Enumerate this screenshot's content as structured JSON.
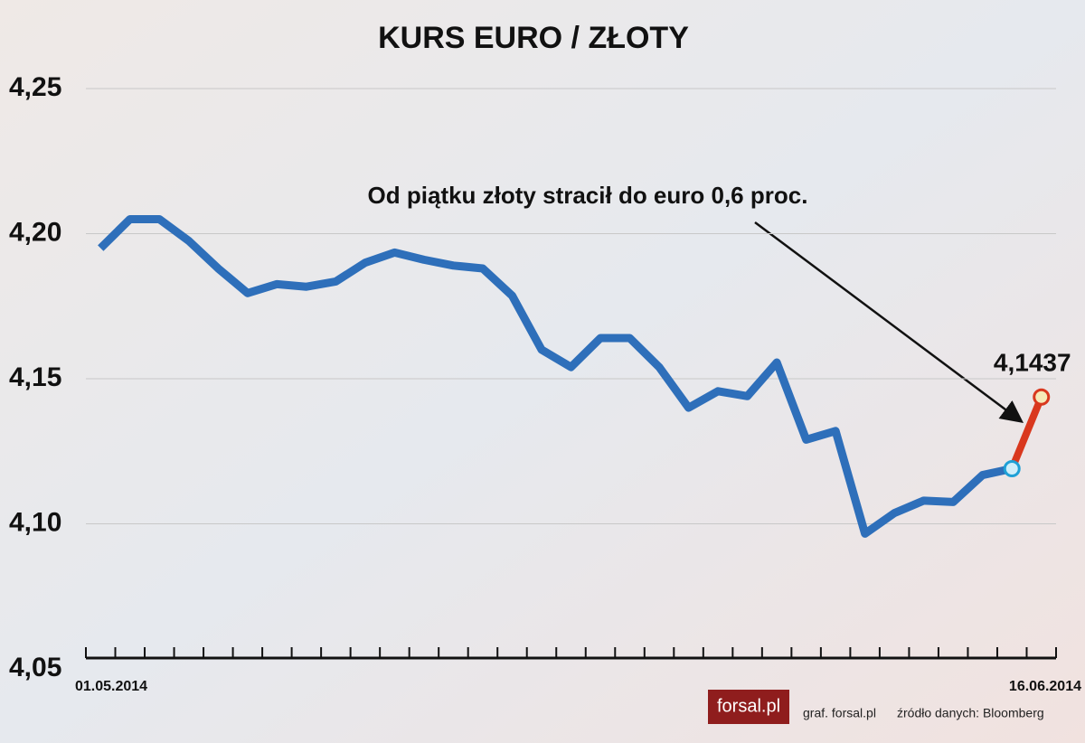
{
  "chart_data": {
    "type": "line",
    "title": "KURS EURO / ZŁOTY",
    "categories": [
      "01.05.2014",
      null,
      null,
      null,
      null,
      null,
      null,
      null,
      null,
      null,
      null,
      null,
      null,
      null,
      null,
      null,
      null,
      null,
      null,
      null,
      null,
      null,
      null,
      null,
      null,
      null,
      null,
      null,
      null,
      null,
      null,
      null,
      "16.06.2014"
    ],
    "values": [
      4.195,
      4.205,
      4.205,
      4.1975,
      4.188,
      4.1795,
      4.1826,
      4.1817,
      4.1835,
      4.19,
      4.1935,
      4.191,
      4.189,
      4.188,
      4.1786,
      4.16,
      4.154,
      4.164,
      4.164,
      4.154,
      4.14,
      4.1457,
      4.144,
      4.1556,
      4.129,
      4.132,
      4.0966,
      4.1037,
      4.108,
      4.1075,
      4.1168,
      4.119,
      4.1437
    ],
    "value_labels": [
      null,
      null,
      null,
      null,
      null,
      null,
      null,
      null,
      null,
      null,
      null,
      null,
      null,
      null,
      null,
      null,
      null,
      null,
      null,
      null,
      null,
      null,
      null,
      null,
      null,
      null,
      null,
      null,
      null,
      null,
      null,
      null,
      "4,1437"
    ],
    "color": "#2e6fba",
    "highlight_color": "#d9381e",
    "ylim": [
      4.05,
      4.25
    ],
    "yticks": [
      {
        "value": 4.05,
        "label": "4,05"
      },
      {
        "value": 4.1,
        "label": "4,10"
      },
      {
        "value": 4.15,
        "label": "4,15"
      },
      {
        "value": 4.2,
        "label": "4,20"
      },
      {
        "value": 4.25,
        "label": "4,25"
      }
    ],
    "grid": true,
    "annotation": "Od piątku złoty stracił do euro 0,6 proc.",
    "logo": "forsal.pl",
    "credit": "graf. forsal.pl",
    "source": "źródło danych: Bloomberg"
  }
}
